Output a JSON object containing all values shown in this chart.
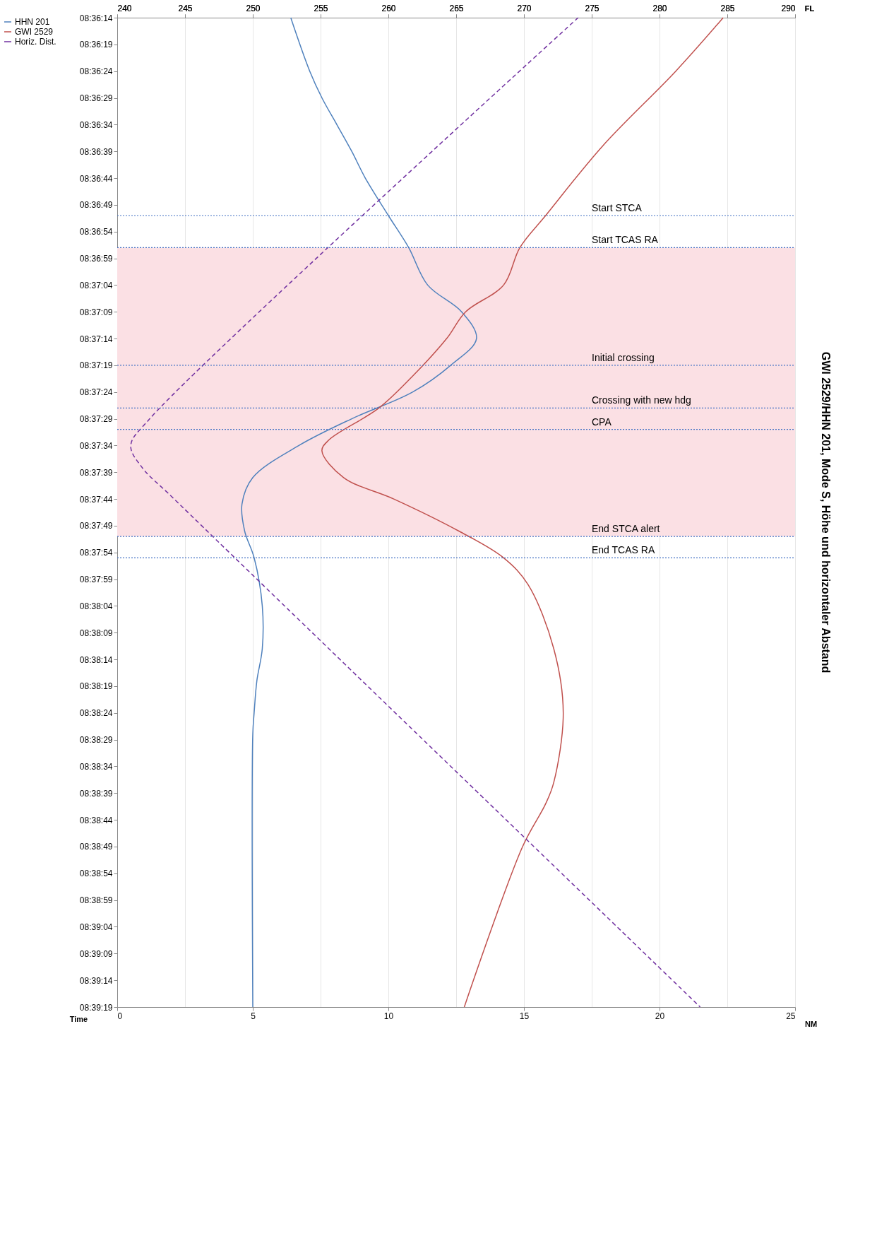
{
  "chart_data": {
    "type": "line",
    "title": "GWI 2529/HHN 201, Mode S, Höhe und horizontaler Abstand",
    "ylabel": "Time",
    "x2label": "FL",
    "xlabel": "NM",
    "grid": "x2",
    "legend": "left",
    "orientation": "horizontal",
    "ylim": [
      8.655278,
      8.603889
    ],
    "yticks": [
      {
        "value": 8.603889,
        "label": "08:36:14"
      },
      {
        "value": 8.605278,
        "label": "08:36:19"
      },
      {
        "value": 8.606667,
        "label": "08:36:24"
      },
      {
        "value": 8.608056,
        "label": "08:36:29"
      },
      {
        "value": 8.609444,
        "label": "08:36:34"
      },
      {
        "value": 8.610833,
        "label": "08:36:39"
      },
      {
        "value": 8.612222,
        "label": "08:36:44"
      },
      {
        "value": 8.613611,
        "label": "08:36:49"
      },
      {
        "value": 8.615,
        "label": "08:36:54"
      },
      {
        "value": 8.616389,
        "label": "08:36:59"
      },
      {
        "value": 8.617778,
        "label": "08:37:04"
      },
      {
        "value": 8.619167,
        "label": "08:37:09"
      },
      {
        "value": 8.620556,
        "label": "08:37:14"
      },
      {
        "value": 8.621944,
        "label": "08:37:19"
      },
      {
        "value": 8.623333,
        "label": "08:37:24"
      },
      {
        "value": 8.624722,
        "label": "08:37:29"
      },
      {
        "value": 8.626111,
        "label": "08:37:34"
      },
      {
        "value": 8.6275,
        "label": "08:37:39"
      },
      {
        "value": 8.628889,
        "label": "08:37:44"
      },
      {
        "value": 8.630278,
        "label": "08:37:49"
      },
      {
        "value": 8.631667,
        "label": "08:37:54"
      },
      {
        "value": 8.633056,
        "label": "08:37:59"
      },
      {
        "value": 8.634444,
        "label": "08:38:04"
      },
      {
        "value": 8.635833,
        "label": "08:38:09"
      },
      {
        "value": 8.637222,
        "label": "08:38:14"
      },
      {
        "value": 8.638611,
        "label": "08:38:19"
      },
      {
        "value": 8.64,
        "label": "08:38:24"
      },
      {
        "value": 8.641389,
        "label": "08:38:29"
      },
      {
        "value": 8.642778,
        "label": "08:38:34"
      },
      {
        "value": 8.644167,
        "label": "08:38:39"
      },
      {
        "value": 8.645556,
        "label": "08:38:44"
      },
      {
        "value": 8.646944,
        "label": "08:38:49"
      },
      {
        "value": 8.648333,
        "label": "08:38:54"
      },
      {
        "value": 8.649722,
        "label": "08:38:59"
      },
      {
        "value": 8.651111,
        "label": "08:39:04"
      },
      {
        "value": 8.6525,
        "label": "08:39:09"
      },
      {
        "value": 8.653889,
        "label": "08:39:14"
      },
      {
        "value": 8.655278,
        "label": "08:39:19"
      }
    ],
    "x2lim": [
      240,
      290
    ],
    "x2ticks": [
      240,
      245,
      250,
      255,
      260,
      265,
      270,
      275,
      280,
      285,
      290
    ],
    "xlim": [
      0,
      25
    ],
    "xticks": [
      0,
      5,
      10,
      15,
      20,
      25
    ],
    "series": [
      {
        "name": "HHN 201",
        "color": "#4f81bd",
        "axis": "x2",
        "x": [
          8.603889,
          8.606667,
          8.608056,
          8.609444,
          8.610833,
          8.612222,
          8.614167,
          8.615833,
          8.617778,
          8.619167,
          8.620556,
          8.621944,
          8.623333,
          8.624722,
          8.626111,
          8.627778,
          8.629167,
          8.630556,
          8.631944,
          8.634444,
          8.636667,
          8.638333,
          8.64,
          8.641111,
          8.655278
        ],
        "values": [
          252.8,
          254.2,
          255.1,
          256.2,
          257.3,
          258.3,
          260.0,
          261.5,
          262.9,
          265.4,
          266.5,
          264.6,
          261.8,
          257.3,
          253.4,
          250.0,
          249.2,
          249.4,
          250.1,
          250.7,
          250.7,
          250.3,
          250.1,
          250.0,
          250.0
        ]
      },
      {
        "name": "GWI 2529",
        "color": "#c0504d",
        "axis": "x2",
        "x": [
          8.603889,
          8.606667,
          8.610556,
          8.614167,
          8.615833,
          8.617778,
          8.619167,
          8.620556,
          8.6225,
          8.624167,
          8.625833,
          8.626389,
          8.627778,
          8.628889,
          8.630556,
          8.631944,
          8.633333,
          8.636667,
          8.64,
          8.643611,
          8.644722,
          8.646944,
          8.655278
        ],
        "values": [
          284.7,
          281.2,
          275.8,
          271.6,
          269.7,
          268.5,
          265.7,
          264.3,
          261.8,
          259.3,
          255.6,
          255.1,
          256.7,
          260.4,
          265.2,
          268.5,
          270.3,
          272.2,
          272.9,
          272.2,
          271.6,
          269.9,
          265.6
        ]
      },
      {
        "name": "Horiz. Dist.",
        "color": "#7030a0",
        "line_style": "dashed",
        "x": [
          8.603889,
          8.624722,
          8.626111,
          8.627222,
          8.628889,
          8.655278
        ],
        "values": [
          17.0,
          1.2,
          0.5,
          0.9,
          2.1,
          21.5
        ]
      }
    ],
    "ref_lines": [
      {
        "axis": "y",
        "value": 8.614167,
        "label": "Start STCA",
        "color": "#4472c4",
        "line_style": "dotted"
      },
      {
        "axis": "y",
        "value": 8.615833,
        "label": "Start TCAS RA",
        "color": "#4472c4",
        "line_style": "dotted"
      },
      {
        "axis": "y",
        "value": 8.621944,
        "label": "Initial crossing",
        "color": "#4472c4",
        "line_style": "dotted"
      },
      {
        "axis": "y",
        "value": 8.624167,
        "label": "Crossing with new hdg",
        "color": "#4472c4",
        "line_style": "dotted"
      },
      {
        "axis": "y",
        "value": 8.625278,
        "label": "CPA",
        "color": "#4472c4",
        "line_style": "dotted"
      },
      {
        "axis": "y",
        "value": 8.630833,
        "label": "End STCA alert",
        "color": "#4472c4",
        "line_style": "dotted"
      },
      {
        "axis": "y",
        "value": 8.631944,
        "label": "End TCAS RA",
        "color": "#4472c4",
        "line_style": "dotted"
      }
    ],
    "bands": [
      {
        "axis": "y",
        "from": 8.615833,
        "to": 8.630833,
        "color": "#fbe0e4"
      }
    ]
  }
}
